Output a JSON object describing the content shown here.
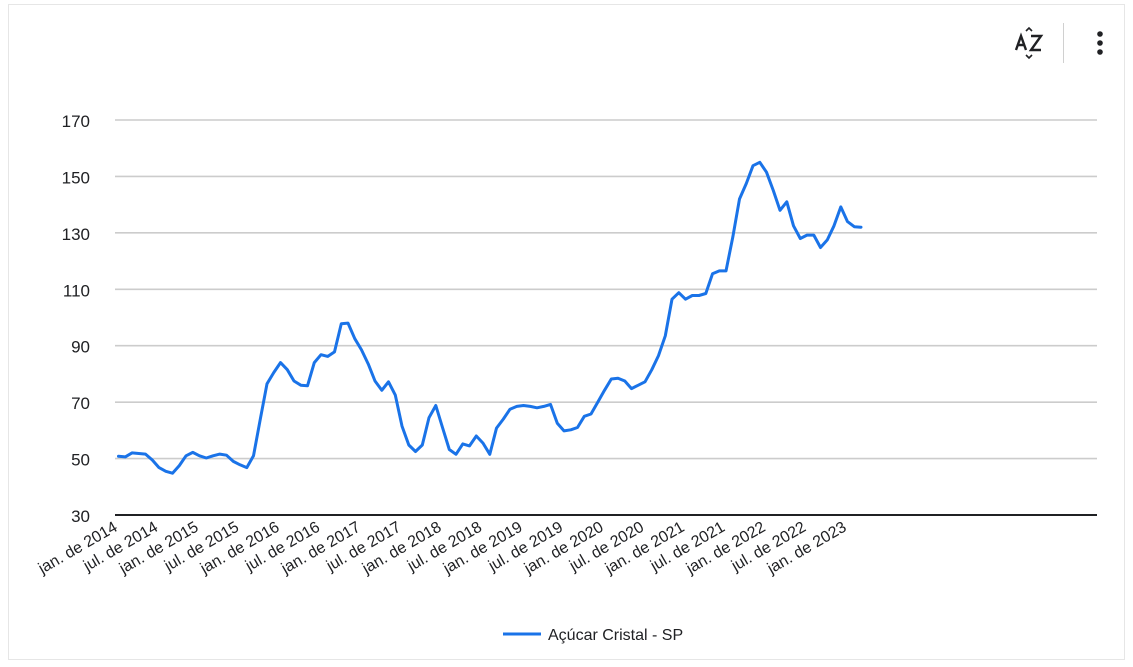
{
  "toolbar": {
    "sort_icon": "sort-az-icon",
    "menu_icon": "more-vert-icon"
  },
  "chart_data": {
    "type": "line",
    "title": "",
    "xlabel": "",
    "ylabel": "",
    "ylim": [
      30,
      170
    ],
    "yticks": [
      30,
      50,
      70,
      90,
      110,
      130,
      150,
      170
    ],
    "grid": true,
    "legend_position": "bottom",
    "x_tick_labels": [
      "jan. de 2014",
      "jul. de 2014",
      "jan. de 2015",
      "jul. de 2015",
      "jan. de 2016",
      "jul. de 2016",
      "jan. de 2017",
      "jul. de 2017",
      "jan. de 2018",
      "jul. de 2018",
      "jan. de 2019",
      "jul. de 2019",
      "jan. de 2020",
      "jul. de 2020",
      "jan. de 2021",
      "jul. de 2021",
      "jan. de 2022",
      "jul. de 2022",
      "jan. de 2023"
    ],
    "series": [
      {
        "name": "Açúcar Cristal - SP",
        "color": "#1a73e8",
        "values": [
          50.8,
          50.6,
          52.0,
          51.8,
          51.6,
          49.5,
          46.8,
          45.5,
          44.8,
          47.5,
          51.0,
          52.2,
          51.0,
          50.2,
          51.0,
          51.6,
          51.2,
          49.0,
          47.8,
          46.8,
          51.0,
          64.0,
          76.5,
          80.5,
          84.0,
          81.5,
          77.5,
          76.0,
          75.8,
          84.0,
          86.8,
          86.2,
          87.8,
          97.8,
          98.0,
          92.5,
          88.5,
          83.5,
          77.5,
          74.2,
          77.2,
          72.5,
          61.5,
          54.8,
          52.5,
          54.8,
          64.5,
          68.8,
          61.0,
          53.2,
          51.5,
          55.2,
          54.5,
          58.0,
          55.5,
          51.5,
          60.8,
          64.0,
          67.5,
          68.5,
          68.8,
          68.5,
          68.0,
          68.5,
          69.2,
          62.5,
          59.8,
          60.2,
          61.0,
          65.0,
          65.8,
          70.0,
          74.2,
          78.2,
          78.5,
          77.5,
          74.8,
          76.0,
          77.2,
          81.5,
          86.5,
          93.5,
          106.5,
          108.8,
          106.5,
          107.8,
          107.8,
          108.5,
          115.5,
          116.5,
          116.5,
          128.5,
          142.0,
          147.5,
          153.8,
          155.0,
          151.5,
          145.0,
          138.0,
          141.0,
          132.5,
          128.0,
          129.2,
          129.2,
          124.8,
          127.5,
          132.5,
          139.2,
          134.0,
          132.2,
          132.0
        ]
      }
    ]
  }
}
